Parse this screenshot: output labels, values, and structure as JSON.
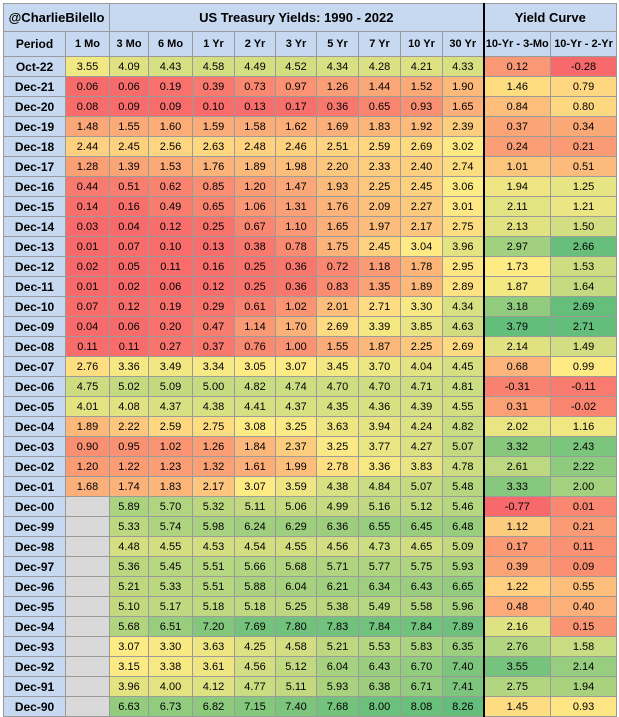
{
  "header": {
    "handle": "@CharlieBilello",
    "title": "US Treasury Yields: 1990 - 2022",
    "curve_title": "Yield Curve"
  },
  "columns": [
    "Period",
    "1 Mo",
    "3 Mo",
    "6 Mo",
    "1 Yr",
    "2 Yr",
    "3 Yr",
    "5 Yr",
    "7 Yr",
    "10 Yr",
    "30 Yr",
    "10-Yr - 3-Mo",
    "10-Yr - 2-Yr"
  ],
  "colors": {
    "low": "#f8696b",
    "mid": "#ffeb84",
    "high": "#63be7b",
    "header": "#c6d9f1",
    "blank": "#d9d9d9"
  },
  "chart_data": {
    "type": "table",
    "title": "US Treasury Yields: 1990 - 2022",
    "yield_columns": [
      "1 Mo",
      "3 Mo",
      "6 Mo",
      "1 Yr",
      "2 Yr",
      "3 Yr",
      "5 Yr",
      "7 Yr",
      "10 Yr",
      "30 Yr"
    ],
    "curve_columns": [
      "10-Yr - 3-Mo",
      "10-Yr - 2-Yr"
    ],
    "rows": [
      {
        "period": "Oct-22",
        "yields": [
          "3.55",
          "4.09",
          "4.43",
          "4.58",
          "4.49",
          "4.52",
          "4.34",
          "4.28",
          "4.21",
          "4.33"
        ],
        "curve": [
          "0.12",
          "-0.28"
        ]
      },
      {
        "period": "Dec-21",
        "yields": [
          "0.06",
          "0.06",
          "0.19",
          "0.39",
          "0.73",
          "0.97",
          "1.26",
          "1.44",
          "1.52",
          "1.90"
        ],
        "curve": [
          "1.46",
          "0.79"
        ]
      },
      {
        "period": "Dec-20",
        "yields": [
          "0.08",
          "0.09",
          "0.09",
          "0.10",
          "0.13",
          "0.17",
          "0.36",
          "0.65",
          "0.93",
          "1.65"
        ],
        "curve": [
          "0.84",
          "0.80"
        ]
      },
      {
        "period": "Dec-19",
        "yields": [
          "1.48",
          "1.55",
          "1.60",
          "1.59",
          "1.58",
          "1.62",
          "1.69",
          "1.83",
          "1.92",
          "2.39"
        ],
        "curve": [
          "0.37",
          "0.34"
        ]
      },
      {
        "period": "Dec-18",
        "yields": [
          "2.44",
          "2.45",
          "2.56",
          "2.63",
          "2.48",
          "2.46",
          "2.51",
          "2.59",
          "2.69",
          "3.02"
        ],
        "curve": [
          "0.24",
          "0.21"
        ]
      },
      {
        "period": "Dec-17",
        "yields": [
          "1.28",
          "1.39",
          "1.53",
          "1.76",
          "1.89",
          "1.98",
          "2.20",
          "2.33",
          "2.40",
          "2.74"
        ],
        "curve": [
          "1.01",
          "0.51"
        ]
      },
      {
        "period": "Dec-16",
        "yields": [
          "0.44",
          "0.51",
          "0.62",
          "0.85",
          "1.20",
          "1.47",
          "1.93",
          "2.25",
          "2.45",
          "3.06"
        ],
        "curve": [
          "1.94",
          "1.25"
        ]
      },
      {
        "period": "Dec-15",
        "yields": [
          "0.14",
          "0.16",
          "0.49",
          "0.65",
          "1.06",
          "1.31",
          "1.76",
          "2.09",
          "2.27",
          "3.01"
        ],
        "curve": [
          "2.11",
          "1.21"
        ]
      },
      {
        "period": "Dec-14",
        "yields": [
          "0.03",
          "0.04",
          "0.12",
          "0.25",
          "0.67",
          "1.10",
          "1.65",
          "1.97",
          "2.17",
          "2.75"
        ],
        "curve": [
          "2.13",
          "1.50"
        ]
      },
      {
        "period": "Dec-13",
        "yields": [
          "0.01",
          "0.07",
          "0.10",
          "0.13",
          "0.38",
          "0.78",
          "1.75",
          "2.45",
          "3.04",
          "3.96"
        ],
        "curve": [
          "2.97",
          "2.66"
        ]
      },
      {
        "period": "Dec-12",
        "yields": [
          "0.02",
          "0.05",
          "0.11",
          "0.16",
          "0.25",
          "0.36",
          "0.72",
          "1.18",
          "1.78",
          "2.95"
        ],
        "curve": [
          "1.73",
          "1.53"
        ]
      },
      {
        "period": "Dec-11",
        "yields": [
          "0.01",
          "0.02",
          "0.06",
          "0.12",
          "0.25",
          "0.36",
          "0.83",
          "1.35",
          "1.89",
          "2.89"
        ],
        "curve": [
          "1.87",
          "1.64"
        ]
      },
      {
        "period": "Dec-10",
        "yields": [
          "0.07",
          "0.12",
          "0.19",
          "0.29",
          "0.61",
          "1.02",
          "2.01",
          "2.71",
          "3.30",
          "4.34"
        ],
        "curve": [
          "3.18",
          "2.69"
        ]
      },
      {
        "period": "Dec-09",
        "yields": [
          "0.04",
          "0.06",
          "0.20",
          "0.47",
          "1.14",
          "1.70",
          "2.69",
          "3.39",
          "3.85",
          "4.63"
        ],
        "curve": [
          "3.79",
          "2.71"
        ]
      },
      {
        "period": "Dec-08",
        "yields": [
          "0.11",
          "0.11",
          "0.27",
          "0.37",
          "0.76",
          "1.00",
          "1.55",
          "1.87",
          "2.25",
          "2.69"
        ],
        "curve": [
          "2.14",
          "1.49"
        ]
      },
      {
        "period": "Dec-07",
        "yields": [
          "2.76",
          "3.36",
          "3.49",
          "3.34",
          "3.05",
          "3.07",
          "3.45",
          "3.70",
          "4.04",
          "4.45"
        ],
        "curve": [
          "0.68",
          "0.99"
        ]
      },
      {
        "period": "Dec-06",
        "yields": [
          "4.75",
          "5.02",
          "5.09",
          "5.00",
          "4.82",
          "4.74",
          "4.70",
          "4.70",
          "4.71",
          "4.81"
        ],
        "curve": [
          "-0.31",
          "-0.11"
        ]
      },
      {
        "period": "Dec-05",
        "yields": [
          "4.01",
          "4.08",
          "4.37",
          "4.38",
          "4.41",
          "4.37",
          "4.35",
          "4.36",
          "4.39",
          "4.55"
        ],
        "curve": [
          "0.31",
          "-0.02"
        ]
      },
      {
        "period": "Dec-04",
        "yields": [
          "1.89",
          "2.22",
          "2.59",
          "2.75",
          "3.08",
          "3.25",
          "3.63",
          "3.94",
          "4.24",
          "4.82"
        ],
        "curve": [
          "2.02",
          "1.16"
        ]
      },
      {
        "period": "Dec-03",
        "yields": [
          "0.90",
          "0.95",
          "1.02",
          "1.26",
          "1.84",
          "2.37",
          "3.25",
          "3.77",
          "4.27",
          "5.07"
        ],
        "curve": [
          "3.32",
          "2.43"
        ]
      },
      {
        "period": "Dec-02",
        "yields": [
          "1.20",
          "1.22",
          "1.23",
          "1.32",
          "1.61",
          "1.99",
          "2.78",
          "3.36",
          "3.83",
          "4.78"
        ],
        "curve": [
          "2.61",
          "2.22"
        ]
      },
      {
        "period": "Dec-01",
        "yields": [
          "1.68",
          "1.74",
          "1.83",
          "2.17",
          "3.07",
          "3.59",
          "4.38",
          "4.84",
          "5.07",
          "5.48"
        ],
        "curve": [
          "3.33",
          "2.00"
        ]
      },
      {
        "period": "Dec-00",
        "yields": [
          null,
          "5.89",
          "5.70",
          "5.32",
          "5.11",
          "5.06",
          "4.99",
          "5.16",
          "5.12",
          "5.46"
        ],
        "curve": [
          "-0.77",
          "0.01"
        ]
      },
      {
        "period": "Dec-99",
        "yields": [
          null,
          "5.33",
          "5.74",
          "5.98",
          "6.24",
          "6.29",
          "6.36",
          "6.55",
          "6.45",
          "6.48"
        ],
        "curve": [
          "1.12",
          "0.21"
        ]
      },
      {
        "period": "Dec-98",
        "yields": [
          null,
          "4.48",
          "4.55",
          "4.53",
          "4.54",
          "4.55",
          "4.56",
          "4.73",
          "4.65",
          "5.09"
        ],
        "curve": [
          "0.17",
          "0.11"
        ]
      },
      {
        "period": "Dec-97",
        "yields": [
          null,
          "5.36",
          "5.45",
          "5.51",
          "5.66",
          "5.68",
          "5.71",
          "5.77",
          "5.75",
          "5.93"
        ],
        "curve": [
          "0.39",
          "0.09"
        ]
      },
      {
        "period": "Dec-96",
        "yields": [
          null,
          "5.21",
          "5.33",
          "5.51",
          "5.88",
          "6.04",
          "6.21",
          "6.34",
          "6.43",
          "6.65"
        ],
        "curve": [
          "1.22",
          "0.55"
        ]
      },
      {
        "period": "Dec-95",
        "yields": [
          null,
          "5.10",
          "5.17",
          "5.18",
          "5.18",
          "5.25",
          "5.38",
          "5.49",
          "5.58",
          "5.96"
        ],
        "curve": [
          "0.48",
          "0.40"
        ]
      },
      {
        "period": "Dec-94",
        "yields": [
          null,
          "5.68",
          "6.51",
          "7.20",
          "7.69",
          "7.80",
          "7.83",
          "7.84",
          "7.84",
          "7.89"
        ],
        "curve": [
          "2.16",
          "0.15"
        ]
      },
      {
        "period": "Dec-93",
        "yields": [
          null,
          "3.07",
          "3.30",
          "3.63",
          "4.25",
          "4.58",
          "5.21",
          "5.53",
          "5.83",
          "6.35"
        ],
        "curve": [
          "2.76",
          "1.58"
        ]
      },
      {
        "period": "Dec-92",
        "yields": [
          null,
          "3.15",
          "3.38",
          "3.61",
          "4.56",
          "5.12",
          "6.04",
          "6.43",
          "6.70",
          "7.40"
        ],
        "curve": [
          "3.55",
          "2.14"
        ]
      },
      {
        "period": "Dec-91",
        "yields": [
          null,
          "3.96",
          "4.00",
          "4.12",
          "4.77",
          "5.11",
          "5.93",
          "6.38",
          "6.71",
          "7.41"
        ],
        "curve": [
          "2.75",
          "1.94"
        ]
      },
      {
        "period": "Dec-90",
        "yields": [
          null,
          "6.63",
          "6.73",
          "6.82",
          "7.15",
          "7.40",
          "7.68",
          "8.00",
          "8.08",
          "8.26"
        ],
        "curve": [
          "1.45",
          "0.93"
        ]
      }
    ]
  }
}
